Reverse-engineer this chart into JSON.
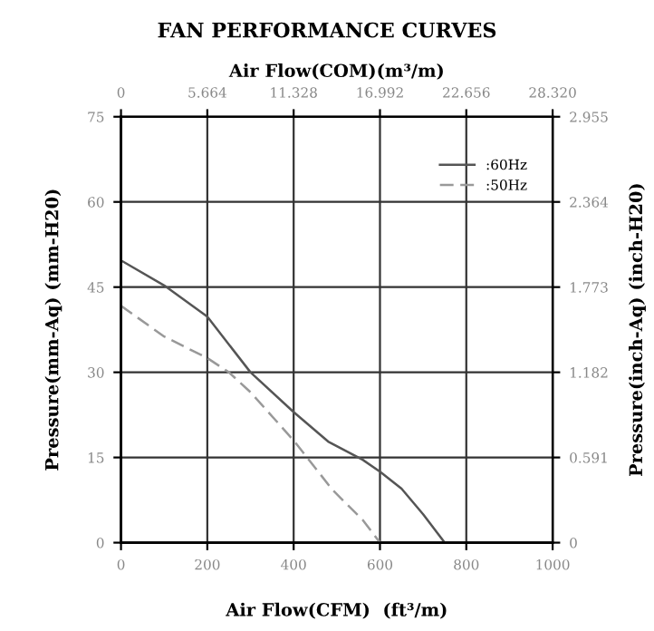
{
  "chart_data": {
    "type": "line",
    "title": "FAN PERFORMANCE CURVES",
    "x2label": "Air Flow(COM)(m³/m)",
    "xlabel": "Air Flow(CFM)  (ft³/m)",
    "ylabel": "Pressure(mm-Aq) (mm-H20)",
    "y2label": "Pressure(inch-Aq) (inch-H20)",
    "series": [
      {
        "name": ":60Hz",
        "color": "#555555",
        "line_style": "solid",
        "x": [
          0,
          100,
          200,
          300,
          400,
          480,
          560,
          600,
          650,
          700,
          750
        ],
        "values": [
          49.7,
          45.3,
          39.8,
          30,
          23,
          17.8,
          14.6,
          12.5,
          9.5,
          5,
          0
        ]
      },
      {
        "name": ":50Hz",
        "color": "#999999",
        "line_style": "dashed",
        "x": [
          0,
          100,
          200,
          250,
          300,
          400,
          490,
          560,
          600
        ],
        "values": [
          41.7,
          36.3,
          32.5,
          30,
          26.5,
          18,
          9.3,
          4,
          0
        ]
      }
    ],
    "xlim": [
      0,
      1000
    ],
    "xticks": [
      0,
      200,
      400,
      600,
      800,
      1000
    ],
    "ylim": [
      0,
      75
    ],
    "yticks": [
      0,
      15,
      30,
      45,
      60,
      75
    ],
    "x2lim": [
      0,
      28.32
    ],
    "x2ticks": [
      0,
      5.664,
      11.328,
      16.992,
      22.656,
      {
        "value": 28.32,
        "label": "28.320"
      }
    ],
    "y2lim": [
      0,
      2.955
    ],
    "y2ticks": [
      0,
      0.591,
      1.182,
      1.773,
      2.364,
      2.955
    ],
    "grid": true,
    "legend": "top right",
    "marker": "none"
  }
}
